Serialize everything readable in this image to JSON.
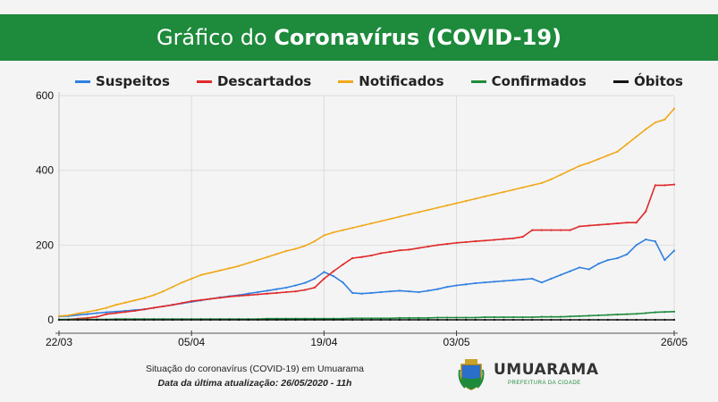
{
  "header": {
    "title_prefix": "Gráfico do ",
    "title_bold": "Coronavírus",
    "title_suffix": " (COVID-19)"
  },
  "footer": {
    "line1": "Situação do coronavírus (COVID-19) em Umuarama",
    "line2": "Data da última atualização: 26/05/2020 - 11h"
  },
  "logo": {
    "brand": "UMUARAMA",
    "subtitle": "PREFEITURA DA CIDADE",
    "seal_icon": "city-coat-of-arms-icon"
  },
  "chart_data": {
    "type": "line",
    "title": "",
    "xlabel": "",
    "ylabel": "",
    "ylim": [
      0,
      600
    ],
    "yticks": [
      0,
      200,
      400,
      600
    ],
    "x_range": [
      "2020-03-22",
      "2020-05-26"
    ],
    "x_tick_labels": [
      "22/03",
      "05/04",
      "19/04",
      "03/05",
      "26/05"
    ],
    "x_ticks": [
      {
        "label": "22/03",
        "day": 0
      },
      {
        "label": "05/04",
        "day": 14
      },
      {
        "label": "19/04",
        "day": 28
      },
      {
        "label": "03/05",
        "day": 42
      },
      {
        "label": "26/05",
        "day": 65
      }
    ],
    "grid": true,
    "legend_position": "top",
    "series": [
      {
        "name": "Suspeitos",
        "color": "#2f7fe0",
        "values": [
          9,
          10,
          13,
          15,
          18,
          20,
          22,
          24,
          26,
          28,
          32,
          36,
          40,
          44,
          48,
          52,
          56,
          60,
          63,
          66,
          70,
          74,
          78,
          82,
          86,
          92,
          99,
          110,
          128,
          117,
          100,
          72,
          70,
          72,
          74,
          76,
          78,
          76,
          74,
          78,
          82,
          88,
          92,
          95,
          98,
          100,
          102,
          104,
          106,
          108,
          110,
          100,
          110,
          120,
          130,
          140,
          135,
          150,
          160,
          165,
          175,
          200,
          215,
          210,
          160,
          185
        ]
      },
      {
        "name": "Descartados",
        "color": "#e02a2a",
        "values": [
          0,
          1,
          3,
          5,
          8,
          15,
          18,
          21,
          24,
          28,
          32,
          36,
          40,
          45,
          50,
          53,
          56,
          59,
          62,
          64,
          66,
          68,
          70,
          72,
          74,
          76,
          80,
          86,
          110,
          130,
          148,
          165,
          168,
          172,
          178,
          182,
          186,
          188,
          192,
          196,
          200,
          203,
          206,
          208,
          210,
          212,
          214,
          216,
          218,
          222,
          240,
          240,
          240,
          240,
          240,
          250,
          252,
          254,
          256,
          258,
          260,
          260,
          290,
          360,
          360,
          362
        ]
      },
      {
        "name": "Notificados",
        "color": "#f0a818",
        "values": [
          10,
          12,
          17,
          21,
          26,
          32,
          40,
          46,
          52,
          58,
          66,
          76,
          88,
          100,
          110,
          120,
          126,
          132,
          138,
          144,
          152,
          160,
          168,
          176,
          184,
          190,
          198,
          210,
          226,
          234,
          240,
          246,
          252,
          258,
          264,
          270,
          276,
          282,
          288,
          294,
          300,
          306,
          312,
          318,
          324,
          330,
          336,
          342,
          348,
          354,
          360,
          366,
          376,
          388,
          400,
          412,
          420,
          430,
          440,
          450,
          470,
          490,
          510,
          528,
          536,
          565
        ]
      },
      {
        "name": "Confirmados",
        "color": "#1e8a3c",
        "values": [
          1,
          1,
          1,
          1,
          1,
          1,
          2,
          2,
          2,
          2,
          2,
          2,
          2,
          2,
          2,
          2,
          2,
          2,
          2,
          2,
          2,
          2,
          3,
          3,
          3,
          3,
          3,
          3,
          3,
          3,
          3,
          4,
          4,
          4,
          4,
          4,
          5,
          5,
          5,
          5,
          6,
          6,
          6,
          6,
          6,
          7,
          7,
          7,
          7,
          7,
          7,
          8,
          8,
          8,
          9,
          10,
          11,
          12,
          13,
          14,
          15,
          16,
          18,
          20,
          21,
          22
        ]
      },
      {
        "name": "Óbitos",
        "color": "#111111",
        "values": [
          0,
          0,
          0,
          0,
          0,
          0,
          0,
          0,
          0,
          0,
          0,
          0,
          0,
          0,
          0,
          0,
          0,
          0,
          0,
          0,
          0,
          0,
          0,
          0,
          0,
          0,
          0,
          0,
          0,
          0,
          0,
          0,
          0,
          0,
          0,
          0,
          0,
          0,
          0,
          0,
          0,
          0,
          0,
          0,
          0,
          0,
          0,
          0,
          0,
          0,
          0,
          0,
          0,
          0,
          0,
          0,
          0,
          0,
          0,
          0,
          0,
          0,
          0,
          0,
          0,
          0
        ]
      }
    ]
  }
}
